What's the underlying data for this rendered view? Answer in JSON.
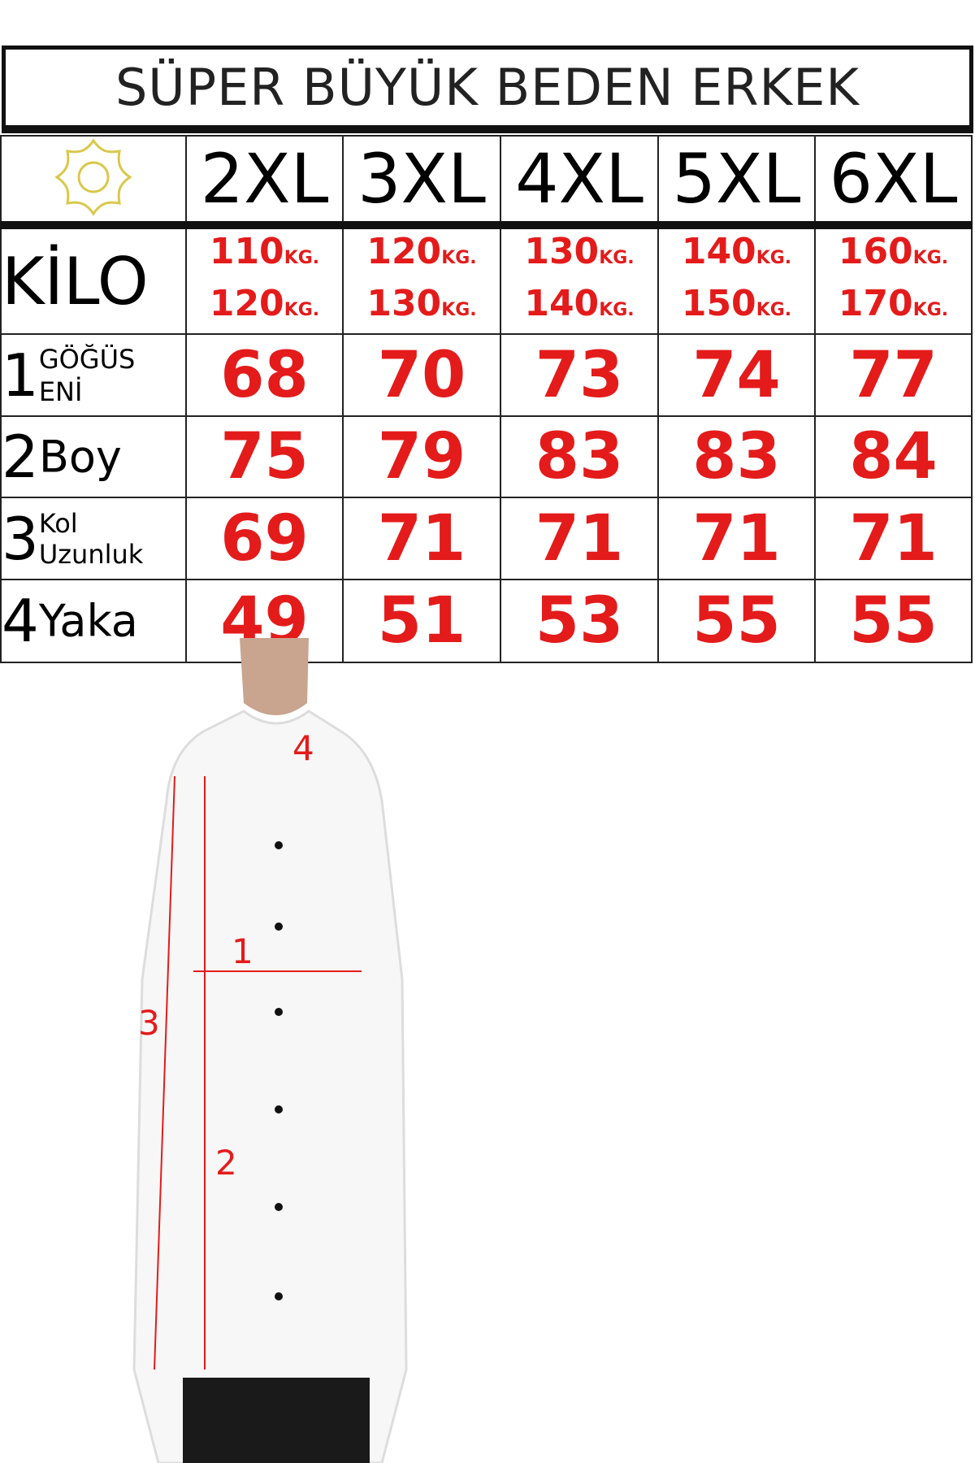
{
  "title": "SÜPER BÜYÜK BEDEN ERKEK",
  "logo": "sun-logo",
  "sizes": [
    "2XL",
    "3XL",
    "4XL",
    "5XL",
    "6XL"
  ],
  "kilo": {
    "label": "KİLO",
    "unit": "KG.",
    "ranges": [
      [
        "110",
        "120"
      ],
      [
        "120",
        "130"
      ],
      [
        "130",
        "140"
      ],
      [
        "140",
        "150"
      ],
      [
        "160",
        "170"
      ]
    ]
  },
  "rows": [
    {
      "num": "1",
      "label_top": "GÖĞÜS",
      "label_bottom": "ENİ",
      "values": [
        "68",
        "70",
        "73",
        "74",
        "77"
      ]
    },
    {
      "num": "2",
      "label": "Boy",
      "values": [
        "75",
        "79",
        "83",
        "83",
        "84"
      ]
    },
    {
      "num": "3",
      "label_top": "Kol",
      "label_bottom": "Uzunluk",
      "values": [
        "69",
        "71",
        "71",
        "71",
        "71"
      ]
    },
    {
      "num": "4",
      "label": "Yaka",
      "values": [
        "49",
        "51",
        "53",
        "55",
        "55"
      ]
    }
  ],
  "diagram_markers": [
    "4",
    "1",
    "3",
    "2"
  ],
  "colors": {
    "accent": "#e41b1b",
    "logo": "#d9c84a"
  }
}
